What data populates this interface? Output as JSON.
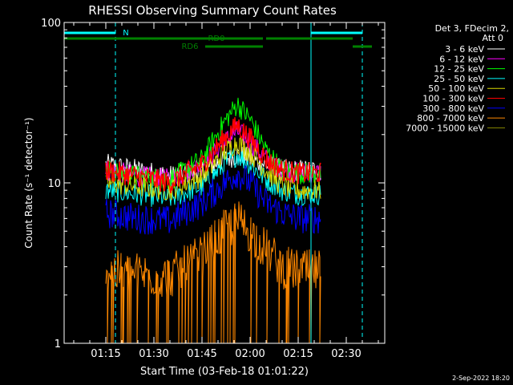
{
  "chart_data": {
    "type": "line",
    "title": "RHESSI Observing Summary Count Rates",
    "xlabel": "Start Time (03-Feb-18 01:01:22)",
    "ylabel": "Count Rate (s⁻¹ detector⁻¹)",
    "y_scale": "log",
    "ylim": [
      1,
      100
    ],
    "y_ticks": [
      "1",
      "10",
      "100"
    ],
    "x_range": [
      "01:02",
      "02:42"
    ],
    "x_ticks": [
      "01:15",
      "01:30",
      "01:45",
      "02:00",
      "02:15",
      "02:30"
    ],
    "legend_title": "Det 3, FDecim 2,",
    "legend_subtitle": "Att 0",
    "legend_position": "right",
    "timestamp": "2-Sep-2022 18:20",
    "series": [
      {
        "name": "3 - 6 keV",
        "color": "#ffffff",
        "x": [
          "01:15",
          "01:25",
          "01:35",
          "01:45",
          "01:52",
          "01:56",
          "02:00",
          "02:05",
          "02:10",
          "02:15",
          "02:20",
          "02:22"
        ],
        "values": [
          13,
          12,
          11,
          12,
          14,
          15,
          14,
          13,
          12,
          12,
          12,
          12
        ]
      },
      {
        "name": "6 - 12 keV",
        "color": "#ff00ff",
        "x": [
          "01:15",
          "01:25",
          "01:35",
          "01:45",
          "01:52",
          "01:56",
          "02:00",
          "02:05",
          "02:10",
          "02:15",
          "02:20",
          "02:22"
        ],
        "values": [
          12,
          11,
          10.5,
          13,
          18,
          21,
          18,
          14,
          12,
          11.5,
          11.5,
          11.5
        ]
      },
      {
        "name": "12 - 25 keV",
        "color": "#00ff00",
        "x": [
          "01:15",
          "01:25",
          "01:35",
          "01:45",
          "01:52",
          "01:56",
          "02:00",
          "02:05",
          "02:10",
          "02:15",
          "02:20",
          "02:22"
        ],
        "values": [
          12,
          11,
          10.5,
          14,
          24,
          31,
          25,
          16,
          12,
          11.5,
          11.5,
          11.5
        ]
      },
      {
        "name": "25 - 50 keV",
        "color": "#00ffff",
        "x": [
          "01:15",
          "01:25",
          "01:35",
          "01:45",
          "01:52",
          "01:56",
          "02:00",
          "02:05",
          "02:10",
          "02:15",
          "02:20",
          "02:22"
        ],
        "values": [
          9,
          8.5,
          8,
          9.5,
          13,
          15,
          13,
          10.5,
          9,
          8.5,
          8.5,
          8.5
        ]
      },
      {
        "name": "50 - 100 keV",
        "color": "#d8d800",
        "x": [
          "01:15",
          "01:25",
          "01:35",
          "01:45",
          "01:52",
          "01:56",
          "02:00",
          "02:05",
          "02:10",
          "02:15",
          "02:20",
          "02:22"
        ],
        "values": [
          10,
          9.5,
          9,
          11,
          15.5,
          18,
          15.5,
          12,
          9.5,
          9,
          9,
          9
        ]
      },
      {
        "name": "100 - 300 keV",
        "color": "#ff0000",
        "x": [
          "01:15",
          "01:25",
          "01:35",
          "01:45",
          "01:52",
          "01:56",
          "02:00",
          "02:05",
          "02:10",
          "02:15",
          "02:20",
          "02:22"
        ],
        "values": [
          12,
          11,
          10,
          13,
          19,
          23,
          19,
          14,
          12,
          11.5,
          11.5,
          11.5
        ]
      },
      {
        "name": "300 - 800 keV",
        "color": "#0000ff",
        "x": [
          "01:15",
          "01:25",
          "01:35",
          "01:45",
          "01:52",
          "01:56",
          "02:00",
          "02:05",
          "02:10",
          "02:15",
          "02:20",
          "02:22"
        ],
        "values": [
          6.5,
          6,
          5.8,
          7.5,
          10,
          11.5,
          10,
          7.5,
          6.5,
          6,
          6,
          6
        ]
      },
      {
        "name": "800 - 7000 keV",
        "color": "#ff8800",
        "x": [
          "01:15",
          "01:25",
          "01:35",
          "01:45",
          "01:52",
          "01:56",
          "02:00",
          "02:05",
          "02:10",
          "02:15",
          "02:20",
          "02:22"
        ],
        "values": [
          2.8,
          2.7,
          2.6,
          3.5,
          5,
          5.8,
          5,
          3.8,
          3,
          2.8,
          2.8,
          2.8
        ]
      },
      {
        "name": "7000 - 15000 keV",
        "color": "#888800",
        "x": [],
        "values": []
      }
    ],
    "state_bars": [
      {
        "label": "N",
        "color": "#00ffff",
        "segments": [
          [
            "01:02",
            "01:18"
          ],
          [
            "02:19",
            "02:35"
          ]
        ]
      },
      {
        "label": "RD0",
        "color": "#008000",
        "segments": [
          [
            "01:02",
            "02:04"
          ],
          [
            "02:05",
            "02:32"
          ]
        ]
      },
      {
        "label": "RD6",
        "color": "#008000",
        "segments": [
          [
            "01:46",
            "02:04"
          ],
          [
            "02:32",
            "02:38"
          ]
        ]
      }
    ],
    "vertical_markers": [
      {
        "x": "01:02",
        "color": "#00ffff",
        "style": "solid"
      },
      {
        "x": "01:18",
        "color": "#00ffff",
        "style": "dashed"
      },
      {
        "x": "02:19",
        "color": "#00ffff",
        "style": "solid"
      },
      {
        "x": "02:35",
        "color": "#00ffff",
        "style": "dashed"
      }
    ],
    "grid": false
  }
}
